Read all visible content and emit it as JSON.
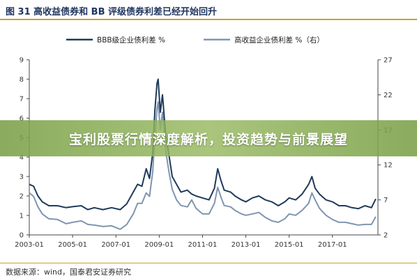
{
  "figure": {
    "title": "图 31  高收益债券和 BB 评级债券利差已经开始回升",
    "source": "数据来源：wind，国泰君安证券研究"
  },
  "banner": {
    "text": "宝利股票行情深度解析，投资趋势与前景展望"
  },
  "colors": {
    "series1": "#1f3a5a",
    "series2": "#7f95b0",
    "accent": "#c9a227",
    "banner": "#7aa048"
  },
  "chart_data": {
    "type": "line",
    "legend_position": "top-center",
    "grid": false,
    "x_ticks": [
      "2003-01",
      "2005-01",
      "2007-01",
      "2009-01",
      "2011-01",
      "2013-01",
      "2015-01",
      "2017-01"
    ],
    "x_range": [
      2003.0,
      2019.1
    ],
    "y_left": {
      "range": [
        0,
        9
      ],
      "ticks": [
        0,
        1,
        2,
        3,
        4,
        5,
        6,
        7,
        8,
        9
      ]
    },
    "y_right": {
      "range": [
        2,
        27
      ],
      "ticks": [
        2,
        7,
        12,
        17,
        22,
        27
      ]
    },
    "series": [
      {
        "name": "BBB级企业债利差 %",
        "axis": "left",
        "points": [
          [
            2003.0,
            2.6
          ],
          [
            2003.2,
            2.5
          ],
          [
            2003.4,
            2.0
          ],
          [
            2003.6,
            1.7
          ],
          [
            2003.9,
            1.5
          ],
          [
            2004.3,
            1.5
          ],
          [
            2004.7,
            1.4
          ],
          [
            2005.0,
            1.45
          ],
          [
            2005.4,
            1.5
          ],
          [
            2005.7,
            1.3
          ],
          [
            2006.0,
            1.4
          ],
          [
            2006.4,
            1.3
          ],
          [
            2006.8,
            1.4
          ],
          [
            2007.2,
            1.3
          ],
          [
            2007.5,
            1.6
          ],
          [
            2007.8,
            2.2
          ],
          [
            2008.0,
            2.6
          ],
          [
            2008.2,
            2.5
          ],
          [
            2008.4,
            3.4
          ],
          [
            2008.55,
            2.9
          ],
          [
            2008.7,
            4.2
          ],
          [
            2008.8,
            6.4
          ],
          [
            2008.9,
            7.8
          ],
          [
            2008.95,
            8.0
          ],
          [
            2009.05,
            6.3
          ],
          [
            2009.15,
            7.2
          ],
          [
            2009.3,
            5.1
          ],
          [
            2009.45,
            4.1
          ],
          [
            2009.6,
            3.0
          ],
          [
            2009.8,
            2.6
          ],
          [
            2010.0,
            2.2
          ],
          [
            2010.3,
            2.3
          ],
          [
            2010.5,
            2.1
          ],
          [
            2010.7,
            2.0
          ],
          [
            2011.0,
            1.9
          ],
          [
            2011.3,
            1.8
          ],
          [
            2011.55,
            2.4
          ],
          [
            2011.7,
            3.4
          ],
          [
            2011.85,
            2.8
          ],
          [
            2012.0,
            2.3
          ],
          [
            2012.3,
            2.2
          ],
          [
            2012.5,
            2.0
          ],
          [
            2012.8,
            1.8
          ],
          [
            2013.0,
            1.7
          ],
          [
            2013.3,
            1.9
          ],
          [
            2013.6,
            2.0
          ],
          [
            2013.9,
            1.8
          ],
          [
            2014.2,
            1.7
          ],
          [
            2014.5,
            1.5
          ],
          [
            2014.8,
            1.7
          ],
          [
            2015.0,
            1.9
          ],
          [
            2015.3,
            1.8
          ],
          [
            2015.6,
            2.1
          ],
          [
            2015.9,
            2.6
          ],
          [
            2016.05,
            3.0
          ],
          [
            2016.2,
            2.4
          ],
          [
            2016.4,
            2.1
          ],
          [
            2016.7,
            1.8
          ],
          [
            2017.0,
            1.7
          ],
          [
            2017.3,
            1.5
          ],
          [
            2017.6,
            1.5
          ],
          [
            2017.9,
            1.4
          ],
          [
            2018.2,
            1.35
          ],
          [
            2018.5,
            1.5
          ],
          [
            2018.8,
            1.4
          ],
          [
            2019.0,
            1.85
          ]
        ]
      },
      {
        "name": "高收益企业债利差 %（右）",
        "axis": "right",
        "points": [
          [
            2003.0,
            8.0
          ],
          [
            2003.2,
            7.5
          ],
          [
            2003.4,
            6.0
          ],
          [
            2003.6,
            5.0
          ],
          [
            2003.9,
            4.3
          ],
          [
            2004.3,
            4.2
          ],
          [
            2004.7,
            3.6
          ],
          [
            2005.0,
            3.8
          ],
          [
            2005.4,
            4.0
          ],
          [
            2005.7,
            3.5
          ],
          [
            2006.0,
            3.4
          ],
          [
            2006.4,
            3.2
          ],
          [
            2006.8,
            3.3
          ],
          [
            2007.2,
            2.8
          ],
          [
            2007.5,
            3.5
          ],
          [
            2007.8,
            5.0
          ],
          [
            2008.0,
            6.5
          ],
          [
            2008.2,
            6.5
          ],
          [
            2008.4,
            8.0
          ],
          [
            2008.55,
            7.5
          ],
          [
            2008.7,
            11.0
          ],
          [
            2008.8,
            16.0
          ],
          [
            2008.9,
            20.0
          ],
          [
            2008.95,
            21.0
          ],
          [
            2009.05,
            17.0
          ],
          [
            2009.15,
            19.5
          ],
          [
            2009.3,
            14.0
          ],
          [
            2009.45,
            11.0
          ],
          [
            2009.6,
            8.5
          ],
          [
            2009.8,
            7.0
          ],
          [
            2010.0,
            6.2
          ],
          [
            2010.3,
            6.0
          ],
          [
            2010.5,
            7.0
          ],
          [
            2010.7,
            5.8
          ],
          [
            2011.0,
            5.0
          ],
          [
            2011.3,
            5.0
          ],
          [
            2011.55,
            6.5
          ],
          [
            2011.7,
            8.8
          ],
          [
            2011.85,
            7.4
          ],
          [
            2012.0,
            6.2
          ],
          [
            2012.3,
            6.0
          ],
          [
            2012.5,
            5.5
          ],
          [
            2012.8,
            5.0
          ],
          [
            2013.0,
            4.8
          ],
          [
            2013.3,
            5.0
          ],
          [
            2013.6,
            5.2
          ],
          [
            2013.9,
            4.5
          ],
          [
            2014.2,
            4.0
          ],
          [
            2014.5,
            3.8
          ],
          [
            2014.8,
            4.3
          ],
          [
            2015.0,
            5.0
          ],
          [
            2015.3,
            4.8
          ],
          [
            2015.6,
            5.5
          ],
          [
            2015.9,
            6.5
          ],
          [
            2016.05,
            8.0
          ],
          [
            2016.2,
            7.0
          ],
          [
            2016.4,
            5.8
          ],
          [
            2016.7,
            4.8
          ],
          [
            2017.0,
            4.2
          ],
          [
            2017.3,
            3.8
          ],
          [
            2017.6,
            3.8
          ],
          [
            2017.9,
            3.6
          ],
          [
            2018.2,
            3.4
          ],
          [
            2018.5,
            3.5
          ],
          [
            2018.8,
            3.5
          ],
          [
            2019.0,
            4.6
          ]
        ]
      }
    ]
  }
}
